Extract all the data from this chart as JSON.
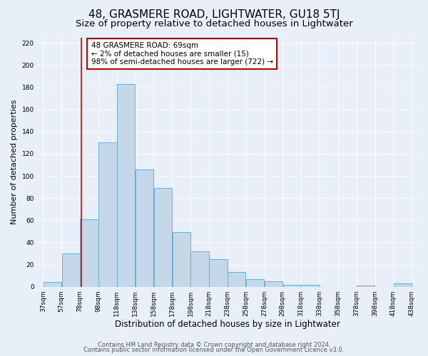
{
  "title": "48, GRASMERE ROAD, LIGHTWATER, GU18 5TJ",
  "subtitle": "Size of property relative to detached houses in Lightwater",
  "xlabel": "Distribution of detached houses by size in Lightwater",
  "ylabel": "Number of detached properties",
  "bar_heights": [
    4,
    30,
    61,
    130,
    183,
    106,
    89,
    49,
    32,
    25,
    13,
    7,
    5,
    2,
    2,
    0,
    0,
    1,
    0,
    3
  ],
  "bar_color": "#c5d8ea",
  "bar_edge_color": "#6aaed6",
  "bar_edge_width": 0.7,
  "ylim": [
    0,
    225
  ],
  "yticks": [
    0,
    20,
    40,
    60,
    80,
    100,
    120,
    140,
    160,
    180,
    200,
    220
  ],
  "xtick_labels": [
    "37sqm",
    "57sqm",
    "78sqm",
    "98sqm",
    "118sqm",
    "138sqm",
    "158sqm",
    "178sqm",
    "198sqm",
    "218sqm",
    "238sqm",
    "258sqm",
    "278sqm",
    "298sqm",
    "318sqm",
    "338sqm",
    "358sqm",
    "378sqm",
    "398sqm",
    "418sqm",
    "438sqm"
  ],
  "vline_index": 1.6,
  "vline_color": "#cc0000",
  "annotation_title": "48 GRASMERE ROAD: 69sqm",
  "annotation_line1": "← 2% of detached houses are smaller (15)",
  "annotation_line2": "98% of semi-detached houses are larger (722) →",
  "annotation_box_color": "#cc0000",
  "bg_color": "#e8eff8",
  "plot_bg_color": "#e8eff8",
  "footer_line1": "Contains HM Land Registry data © Crown copyright and database right 2024.",
  "footer_line2": "Contains public sector information licensed under the Open Government Licence v3.0.",
  "title_fontsize": 11,
  "subtitle_fontsize": 9.5,
  "xlabel_fontsize": 8.5,
  "ylabel_fontsize": 8,
  "tick_fontsize": 6.5,
  "annotation_fontsize": 7.5,
  "footer_fontsize": 6
}
